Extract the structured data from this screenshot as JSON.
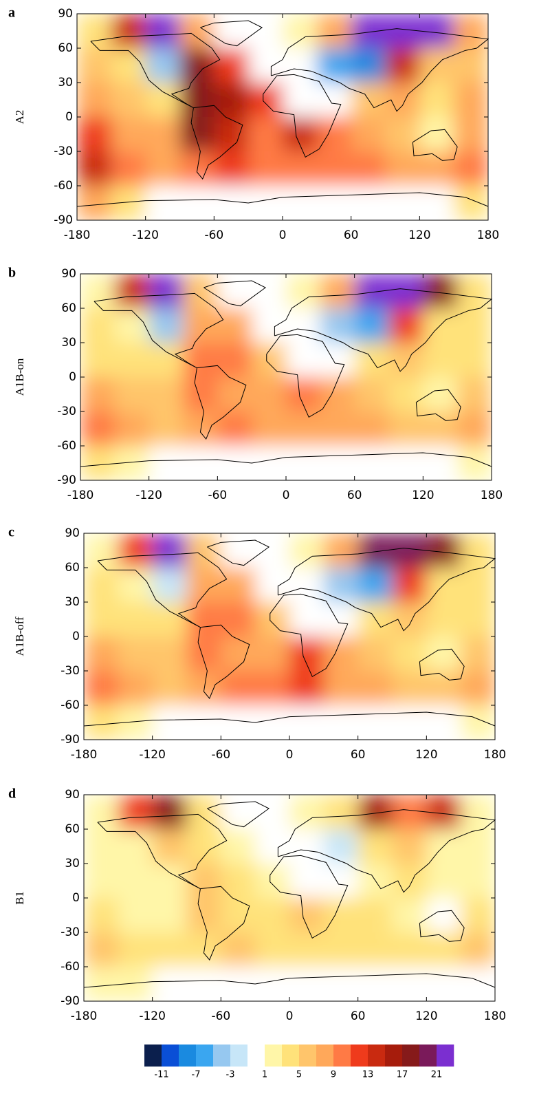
{
  "chart_data": [
    {
      "type": "heatmap",
      "panel": "a",
      "ylabel": "A2",
      "x": [
        -165,
        -135,
        -105,
        -75,
        -45,
        -15,
        15,
        45,
        75,
        105,
        135,
        165
      ],
      "y": [
        75,
        45,
        15,
        -15,
        -45,
        -75
      ],
      "values": [
        [
          4,
          14,
          22,
          8,
          0,
          0,
          2,
          8,
          22,
          22,
          22,
          8
        ],
        [
          6,
          4,
          -4,
          18,
          12,
          0,
          0,
          -6,
          -8,
          14,
          6,
          6
        ],
        [
          8,
          6,
          4,
          18,
          16,
          12,
          0,
          0,
          6,
          8,
          4,
          8
        ],
        [
          12,
          8,
          8,
          18,
          14,
          10,
          14,
          10,
          8,
          6,
          2,
          8
        ],
        [
          14,
          10,
          8,
          10,
          12,
          10,
          10,
          10,
          10,
          8,
          8,
          10
        ],
        [
          8,
          4,
          0,
          0,
          0,
          0,
          0,
          0,
          0,
          0,
          0,
          4
        ]
      ],
      "xlim": [
        -180,
        180
      ],
      "ylim": [
        -90,
        90
      ],
      "xticks": [
        -180,
        -120,
        -60,
        0,
        60,
        120,
        180
      ],
      "yticks": [
        -90,
        -60,
        -30,
        0,
        30,
        60,
        90
      ]
    },
    {
      "type": "heatmap",
      "panel": "b",
      "ylabel": "A1B-on",
      "x": [
        -165,
        -135,
        -105,
        -75,
        -45,
        -15,
        15,
        45,
        75,
        105,
        135,
        165
      ],
      "y": [
        75,
        45,
        15,
        -15,
        -45,
        -75
      ],
      "values": [
        [
          2,
          14,
          22,
          6,
          0,
          0,
          2,
          8,
          22,
          22,
          18,
          4
        ],
        [
          4,
          2,
          -4,
          8,
          8,
          0,
          0,
          -4,
          -6,
          12,
          4,
          4
        ],
        [
          4,
          4,
          4,
          10,
          10,
          6,
          0,
          0,
          4,
          6,
          4,
          4
        ],
        [
          8,
          6,
          6,
          10,
          8,
          8,
          10,
          8,
          6,
          4,
          2,
          6
        ],
        [
          10,
          8,
          6,
          8,
          10,
          8,
          8,
          8,
          8,
          6,
          6,
          8
        ],
        [
          4,
          2,
          0,
          0,
          0,
          0,
          0,
          0,
          0,
          0,
          0,
          2
        ]
      ],
      "xlim": [
        -180,
        180
      ],
      "ylim": [
        -90,
        90
      ],
      "xticks": [
        -180,
        -120,
        -60,
        0,
        60,
        120,
        180
      ],
      "yticks": [
        -90,
        -60,
        -30,
        0,
        30,
        60,
        90
      ]
    },
    {
      "type": "heatmap",
      "panel": "c",
      "ylabel": "A1B-off",
      "x": [
        -165,
        -135,
        -105,
        -75,
        -45,
        -15,
        15,
        45,
        75,
        105,
        135,
        165
      ],
      "y": [
        75,
        45,
        15,
        -15,
        -45,
        -75
      ],
      "values": [
        [
          2,
          12,
          22,
          6,
          0,
          0,
          2,
          8,
          20,
          20,
          18,
          4
        ],
        [
          4,
          2,
          -2,
          8,
          8,
          0,
          0,
          -4,
          -6,
          12,
          4,
          4
        ],
        [
          4,
          4,
          4,
          10,
          10,
          6,
          0,
          0,
          4,
          6,
          4,
          4
        ],
        [
          8,
          6,
          6,
          10,
          8,
          8,
          12,
          8,
          6,
          4,
          2,
          6
        ],
        [
          10,
          8,
          6,
          8,
          10,
          10,
          12,
          8,
          8,
          6,
          6,
          8
        ],
        [
          4,
          2,
          0,
          0,
          0,
          0,
          0,
          0,
          0,
          0,
          0,
          2
        ]
      ],
      "xlim": [
        -180,
        180
      ],
      "ylim": [
        -90,
        90
      ],
      "xticks": [
        -180,
        -120,
        -60,
        0,
        60,
        120,
        180
      ],
      "yticks": [
        -90,
        -60,
        -30,
        0,
        30,
        60,
        90
      ]
    },
    {
      "type": "heatmap",
      "panel": "d",
      "ylabel": "B1",
      "x": [
        -165,
        -135,
        -105,
        -75,
        -45,
        -15,
        15,
        45,
        75,
        105,
        135,
        165
      ],
      "y": [
        75,
        45,
        15,
        -15,
        -45,
        -75
      ],
      "values": [
        [
          2,
          12,
          18,
          4,
          0,
          0,
          2,
          4,
          16,
          10,
          14,
          2
        ],
        [
          2,
          2,
          6,
          4,
          2,
          0,
          0,
          -2,
          4,
          6,
          2,
          2
        ],
        [
          2,
          2,
          2,
          6,
          4,
          2,
          0,
          0,
          2,
          4,
          2,
          2
        ],
        [
          4,
          2,
          2,
          6,
          4,
          4,
          6,
          4,
          4,
          2,
          0,
          4
        ],
        [
          6,
          4,
          4,
          4,
          6,
          4,
          4,
          4,
          4,
          4,
          4,
          6
        ],
        [
          2,
          2,
          0,
          0,
          0,
          0,
          0,
          0,
          0,
          0,
          0,
          0
        ]
      ],
      "xlim": [
        -180,
        180
      ],
      "ylim": [
        -90,
        90
      ],
      "xticks": [
        -180,
        -120,
        -60,
        0,
        60,
        120,
        180
      ],
      "yticks": [
        -90,
        -60,
        -30,
        0,
        30,
        60,
        90
      ]
    }
  ],
  "colorbar": {
    "colors": [
      "#0b1f4d",
      "#0a4fd6",
      "#1a8ae0",
      "#3aa6f0",
      "#96c8f0",
      "#c7e6f8",
      "#ffffff",
      "#fff6a8",
      "#ffe27a",
      "#ffc56b",
      "#ffa85a",
      "#ff7a45",
      "#ef3b1c",
      "#c92a10",
      "#a61c0c",
      "#861a1a",
      "#7a1a5a",
      "#7b2fd0"
    ],
    "ticks": [
      -11,
      -7,
      -3,
      1,
      5,
      9,
      13,
      17,
      21
    ]
  }
}
